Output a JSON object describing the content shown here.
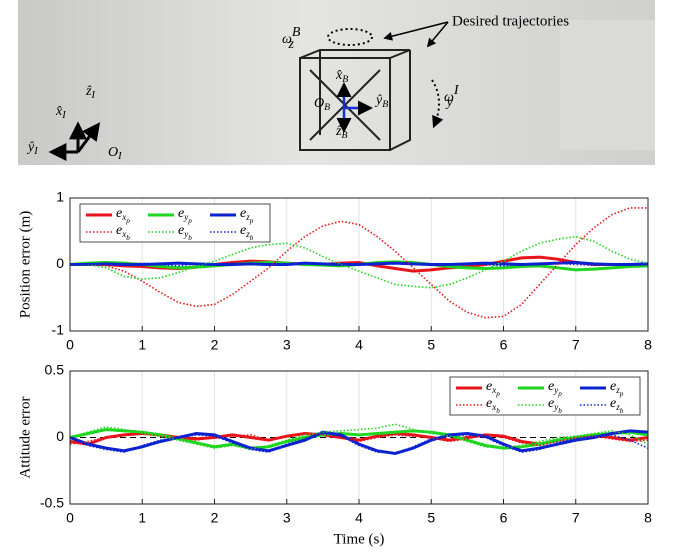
{
  "photo": {
    "caption": "Desired trajectories",
    "labels": [
      {
        "text": "ω",
        "sub": "z",
        "sup": "B"
      },
      {
        "text": "ω",
        "sub": "y",
        "sup": "I"
      },
      {
        "text": "x̂",
        "sub": "I"
      },
      {
        "text": "ẑ",
        "sub": "I"
      },
      {
        "text": "ŷ",
        "sub": "I"
      },
      {
        "text": "O",
        "sub": "I"
      },
      {
        "text": "x̂",
        "sub": "B"
      },
      {
        "text": "ŷ",
        "sub": "B"
      },
      {
        "text": "ẑ",
        "sub": "B"
      },
      {
        "text": "O",
        "sub": "B"
      }
    ]
  },
  "chart_data": [
    {
      "type": "line",
      "ylabel": "Position error (m)",
      "x": [
        0,
        0.25,
        0.5,
        0.75,
        1,
        1.25,
        1.5,
        1.75,
        2,
        2.25,
        2.5,
        2.75,
        3,
        3.25,
        3.5,
        3.75,
        4,
        4.25,
        4.5,
        4.75,
        5,
        5.25,
        5.5,
        5.75,
        6,
        6.25,
        6.5,
        6.75,
        7,
        7.25,
        7.5,
        7.75,
        8
      ],
      "xlim": [
        0,
        8
      ],
      "xticks": [
        0,
        1,
        2,
        3,
        4,
        5,
        6,
        7,
        8
      ],
      "ylim": [
        -1,
        1
      ],
      "yticks": [
        -1,
        0,
        1
      ],
      "grid": "x",
      "legend": "upper-left",
      "series": [
        {
          "name": "e",
          "sub": "x",
          "sub2": "p",
          "color": "#e8141b",
          "dash": "solid",
          "values": [
            0,
            0,
            0,
            -0.02,
            -0.03,
            -0.05,
            -0.06,
            -0.04,
            0,
            0.03,
            0.05,
            0.04,
            0.02,
            0,
            0,
            0.02,
            0.03,
            -0.02,
            -0.06,
            -0.1,
            -0.08,
            -0.05,
            -0.03,
            0,
            0.05,
            0.1,
            0.11,
            0.08,
            0.03,
            0,
            0,
            0,
            0
          ]
        },
        {
          "name": "e",
          "sub": "y",
          "sub2": "p",
          "color": "#1fd61f",
          "dash": "solid",
          "values": [
            0,
            0.02,
            0.03,
            0.02,
            0,
            -0.03,
            -0.05,
            -0.04,
            -0.02,
            0,
            0.02,
            0.03,
            0.02,
            0,
            -0.01,
            -0.02,
            0,
            0.03,
            0.04,
            0.03,
            0,
            -0.03,
            -0.05,
            -0.06,
            -0.05,
            -0.03,
            -0.02,
            -0.05,
            -0.08,
            -0.07,
            -0.05,
            -0.03,
            -0.02
          ]
        },
        {
          "name": "e",
          "sub": "z",
          "sub2": "p",
          "color": "#0b22d0",
          "dash": "solid",
          "values": [
            0,
            0,
            0.01,
            0,
            0,
            0.01,
            0.02,
            0.01,
            0,
            0,
            0.01,
            0,
            0,
            0.02,
            0.01,
            0,
            0,
            0.01,
            0.02,
            0.01,
            0,
            0,
            0.01,
            0.02,
            0.01,
            0,
            0.01,
            0.02,
            0.03,
            0.01,
            0,
            0,
            0.01
          ]
        },
        {
          "name": "e",
          "sub": "x",
          "sub2": "b",
          "color": "#e8141b",
          "dash": "dotted",
          "values": [
            0,
            0,
            -0.02,
            -0.1,
            -0.25,
            -0.42,
            -0.57,
            -0.63,
            -0.6,
            -0.45,
            -0.25,
            -0.05,
            0.2,
            0.42,
            0.58,
            0.65,
            0.6,
            0.42,
            0.2,
            -0.05,
            -0.3,
            -0.55,
            -0.72,
            -0.8,
            -0.78,
            -0.6,
            -0.3,
            0,
            0.3,
            0.55,
            0.75,
            0.85,
            0.85
          ]
        },
        {
          "name": "e",
          "sub": "y",
          "sub2": "b",
          "color": "#1fd61f",
          "dash": "dotted",
          "values": [
            0,
            0,
            -0.05,
            -0.18,
            -0.22,
            -0.2,
            -0.12,
            -0.03,
            0.05,
            0.15,
            0.25,
            0.3,
            0.32,
            0.25,
            0.12,
            0,
            -0.1,
            -0.2,
            -0.3,
            -0.33,
            -0.35,
            -0.3,
            -0.2,
            -0.08,
            0.05,
            0.2,
            0.32,
            0.38,
            0.42,
            0.35,
            0.2,
            0.08,
            0.02
          ]
        },
        {
          "name": "e",
          "sub": "z",
          "sub2": "b",
          "color": "#0b22d0",
          "dash": "dotted",
          "values": [
            0,
            0.01,
            0,
            -0.01,
            0.02,
            0,
            -0.02,
            0.01,
            0,
            0.02,
            0,
            -0.01,
            0.01,
            0.02,
            0,
            -0.01,
            0,
            0.01,
            0.02,
            0,
            -0.01,
            0,
            0.01,
            0,
            -0.02,
            0,
            0.01,
            0.02,
            0,
            -0.01,
            0,
            0.01,
            0
          ]
        }
      ]
    },
    {
      "type": "line",
      "ylabel": "Attitude error",
      "xlabel": "Time (s)",
      "x": [
        0,
        0.25,
        0.5,
        0.75,
        1,
        1.25,
        1.5,
        1.75,
        2,
        2.25,
        2.5,
        2.75,
        3,
        3.25,
        3.5,
        3.75,
        4,
        4.25,
        4.5,
        4.75,
        5,
        5.25,
        5.5,
        5.75,
        6,
        6.25,
        6.5,
        6.75,
        7,
        7.25,
        7.5,
        7.75,
        8
      ],
      "xlim": [
        0,
        8
      ],
      "xticks": [
        0,
        1,
        2,
        3,
        4,
        5,
        6,
        7,
        8
      ],
      "ylim": [
        -0.5,
        0.5
      ],
      "yticks": [
        -0.5,
        0,
        0.5
      ],
      "grid": "x",
      "legend": "upper-right",
      "hline": 0,
      "series": [
        {
          "name": "e",
          "sub": "x",
          "sub2": "p",
          "color": "#e8141b",
          "dash": "solid",
          "values": [
            -0.03,
            -0.05,
            0,
            0.02,
            0.03,
            0.02,
            0,
            -0.01,
            0,
            0.02,
            0,
            -0.02,
            0.01,
            0.03,
            0.02,
            0,
            -0.02,
            0.01,
            0.03,
            0.02,
            0,
            -0.02,
            0,
            0.02,
            0.01,
            -0.03,
            -0.05,
            -0.02,
            0,
            0.02,
            0,
            -0.02,
            0
          ]
        },
        {
          "name": "e",
          "sub": "y",
          "sub2": "p",
          "color": "#1fd61f",
          "dash": "solid",
          "values": [
            0,
            0.03,
            0.06,
            0.05,
            0.04,
            0.02,
            -0.01,
            -0.04,
            -0.07,
            -0.05,
            -0.08,
            -0.07,
            -0.03,
            0,
            0.02,
            0.03,
            0.02,
            0.03,
            0.04,
            0.05,
            0.04,
            0.02,
            -0.02,
            -0.06,
            -0.08,
            -0.07,
            -0.05,
            -0.02,
            0,
            0.02,
            0.03,
            0.04,
            0.02
          ]
        },
        {
          "name": "e",
          "sub": "z",
          "sub2": "p",
          "color": "#0b22d0",
          "dash": "solid",
          "values": [
            0,
            -0.05,
            -0.08,
            -0.1,
            -0.07,
            -0.03,
            0,
            0.03,
            0.02,
            -0.03,
            -0.08,
            -0.1,
            -0.06,
            -0.02,
            0.04,
            0.02,
            -0.05,
            -0.1,
            -0.12,
            -0.08,
            -0.02,
            0.02,
            0.03,
            0.01,
            -0.05,
            -0.1,
            -0.08,
            -0.05,
            -0.02,
            0,
            0.03,
            0.05,
            0.04
          ]
        },
        {
          "name": "e",
          "sub": "x",
          "sub2": "b",
          "color": "#e8141b",
          "dash": "dotted",
          "values": [
            -0.05,
            -0.03,
            0,
            0.02,
            0.03,
            0.01,
            0,
            -0.02,
            0,
            0.01,
            0.02,
            -0.02,
            0.01,
            0.03,
            0.02,
            0,
            -0.03,
            0,
            0.02,
            0.01,
            0,
            -0.03,
            -0.01,
            0.02,
            0,
            -0.04,
            -0.06,
            -0.03,
            0,
            0.01,
            -0.01,
            -0.03,
            -0.02
          ]
        },
        {
          "name": "e",
          "sub": "y",
          "sub2": "b",
          "color": "#1fd61f",
          "dash": "dotted",
          "values": [
            0,
            0.04,
            0.08,
            0.06,
            0.03,
            0.01,
            -0.02,
            -0.05,
            -0.08,
            -0.06,
            -0.09,
            -0.06,
            -0.02,
            0.02,
            0.04,
            0.05,
            0.06,
            0.07,
            0.1,
            0.06,
            0.03,
            0.01,
            -0.03,
            -0.07,
            -0.08,
            -0.06,
            -0.03,
            0,
            0.01,
            0.03,
            0.05,
            0.02,
            -0.05
          ]
        },
        {
          "name": "e",
          "sub": "z",
          "sub2": "b",
          "color": "#0b22d0",
          "dash": "dotted",
          "values": [
            0,
            -0.06,
            -0.09,
            -0.11,
            -0.06,
            -0.02,
            0,
            0.02,
            0.01,
            -0.04,
            -0.09,
            -0.11,
            -0.05,
            -0.01,
            0.03,
            0.01,
            -0.06,
            -0.11,
            -0.12,
            -0.07,
            -0.01,
            0.01,
            0.02,
            0,
            -0.06,
            -0.11,
            -0.09,
            -0.04,
            -0.01,
            0.01,
            0.02,
            -0.02,
            -0.08
          ]
        }
      ]
    }
  ]
}
